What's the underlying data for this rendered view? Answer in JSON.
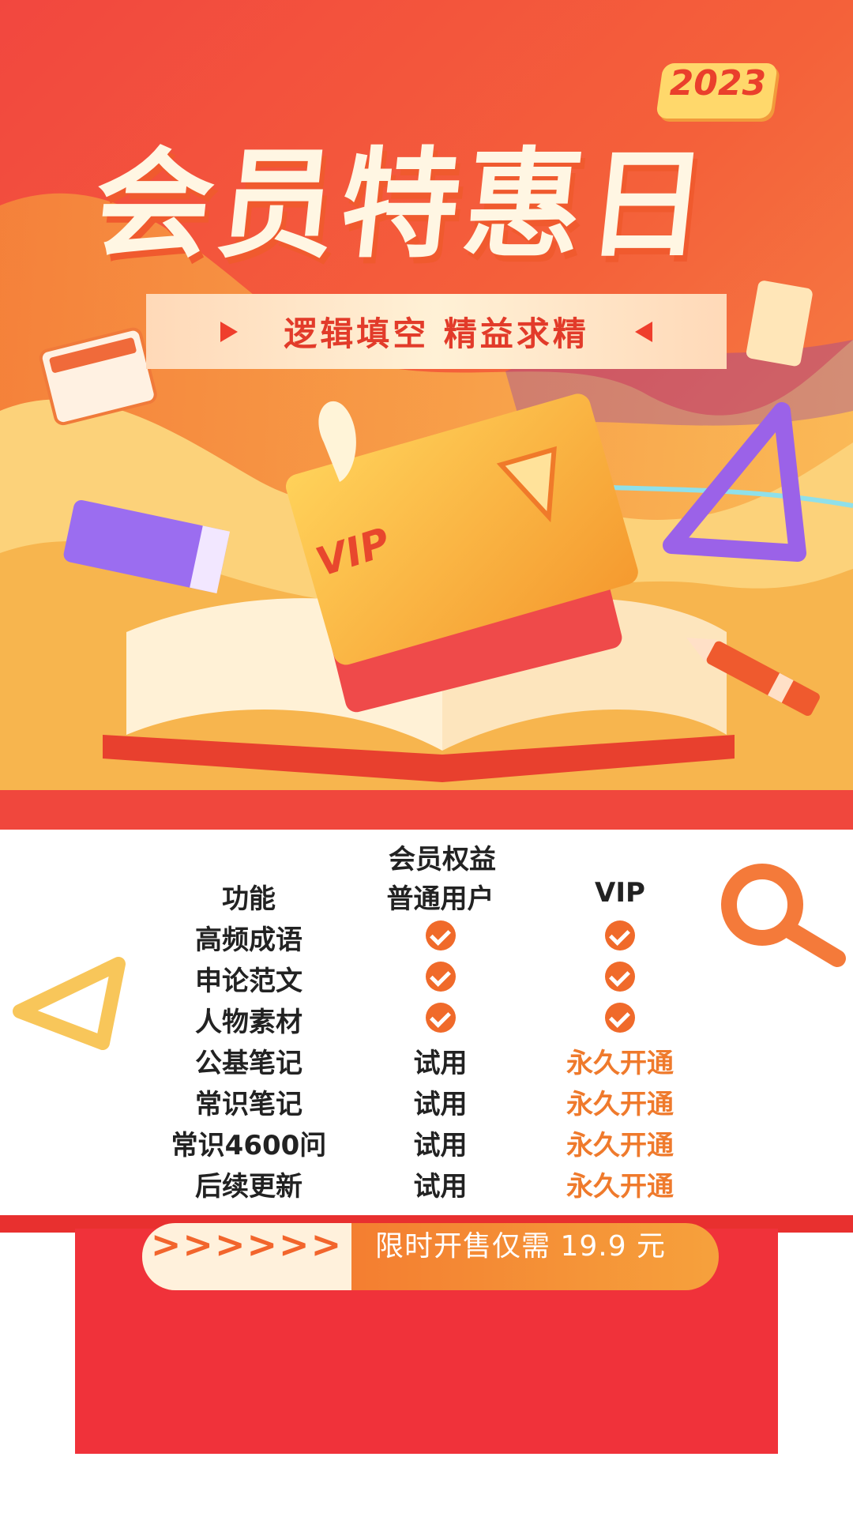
{
  "hero": {
    "year": "2023",
    "headline": "会员特惠日",
    "slogan": "逻辑填空 精益求精",
    "card_label": "VIP"
  },
  "benefits": {
    "heading": "会员权益",
    "columns": [
      "功能",
      "普通用户",
      "VIP"
    ],
    "rows": [
      {
        "feature": "高频成语",
        "normal": "check",
        "vip": "check"
      },
      {
        "feature": "申论范文",
        "normal": "check",
        "vip": "check"
      },
      {
        "feature": "人物素材",
        "normal": "check",
        "vip": "check"
      },
      {
        "feature": "公基笔记",
        "normal": "试用",
        "vip": "永久开通"
      },
      {
        "feature": "常识笔记",
        "normal": "试用",
        "vip": "永久开通"
      },
      {
        "feature": "常识4600问",
        "normal": "试用",
        "vip": "永久开通"
      },
      {
        "feature": "后续更新",
        "normal": "试用",
        "vip": "永久开通"
      }
    ]
  },
  "cta": {
    "arrows": ">>>>>>",
    "text": "限时开售仅需 19.9 元"
  },
  "colors": {
    "accent": "#f0473d",
    "orange": "#f06a2a",
    "gold_text": "#ef7a2c",
    "cream": "#fff6e3"
  },
  "icons": [
    "check-icon",
    "magnifier-icon",
    "triangle-ruler-icon",
    "calculator-icon",
    "book-icon",
    "pencil-icon",
    "vip-card-icon"
  ]
}
